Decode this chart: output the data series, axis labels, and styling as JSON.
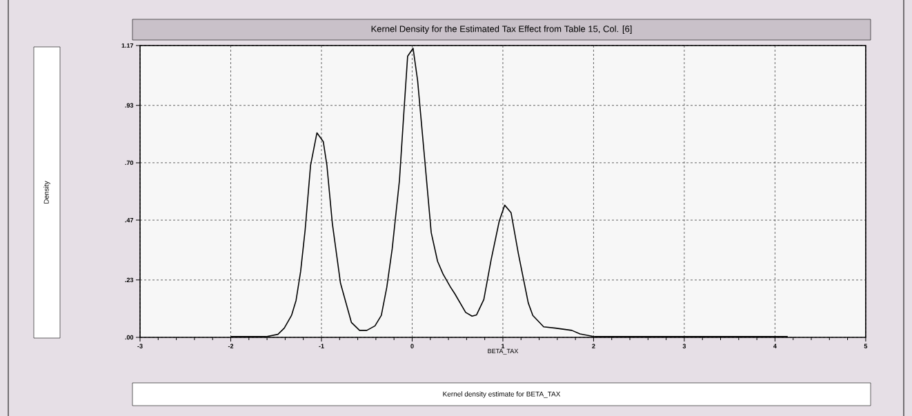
{
  "chart_data": {
    "type": "line",
    "title": "Kernel Density for the Estimated Tax Effect from Table 15, Col. [6]",
    "xlabel": "BETA_TAX",
    "annotations": [
      "Density",
      "Kernel density estimate for BETA_TAX"
    ],
    "series": [
      {
        "color": "#000000",
        "line_style": "solid",
        "x": [
          -2.0,
          -1.61,
          -1.48,
          -1.41,
          -1.33,
          -1.28,
          -1.23,
          -1.18,
          -1.12,
          -1.05,
          -0.98,
          -0.94,
          -0.88,
          -0.79,
          -0.67,
          -0.58,
          -0.5,
          -0.41,
          -0.34,
          -0.28,
          -0.22,
          -0.14,
          -0.09,
          -0.05,
          0.01,
          0.06,
          0.14,
          0.21,
          0.28,
          0.34,
          0.42,
          0.47,
          0.59,
          0.66,
          0.71,
          0.79,
          0.87,
          0.96,
          1.02,
          1.09,
          1.17,
          1.28,
          1.33,
          1.45,
          1.58,
          1.76,
          1.85,
          2.01,
          3.0,
          4.14
        ],
        "values": [
          0.003,
          0.003,
          0.012,
          0.037,
          0.088,
          0.148,
          0.263,
          0.43,
          0.69,
          0.82,
          0.785,
          0.69,
          0.457,
          0.217,
          0.06,
          0.028,
          0.028,
          0.046,
          0.088,
          0.2,
          0.355,
          0.63,
          0.91,
          1.127,
          1.159,
          1.03,
          0.706,
          0.42,
          0.305,
          0.254,
          0.203,
          0.175,
          0.1,
          0.085,
          0.09,
          0.152,
          0.31,
          0.466,
          0.53,
          0.5,
          0.337,
          0.138,
          0.088,
          0.042,
          0.037,
          0.028,
          0.014,
          0.003,
          0.003,
          0.003
        ]
      }
    ],
    "xlim": [
      -3,
      5
    ],
    "ylim": [
      0,
      1.17
    ],
    "xticks": [
      -3,
      -2,
      -1,
      0,
      1,
      2,
      3,
      4,
      5
    ],
    "yticks": [
      {
        "value": 0,
        "label": ".00"
      },
      {
        "value": 0.23,
        "label": ".23"
      },
      {
        "value": 0.47,
        "label": ".47"
      },
      {
        "value": 0.7,
        "label": ".70"
      },
      {
        "value": 0.93,
        "label": ".93"
      },
      {
        "value": 1.17,
        "label": "1.17"
      }
    ],
    "grid": true
  }
}
